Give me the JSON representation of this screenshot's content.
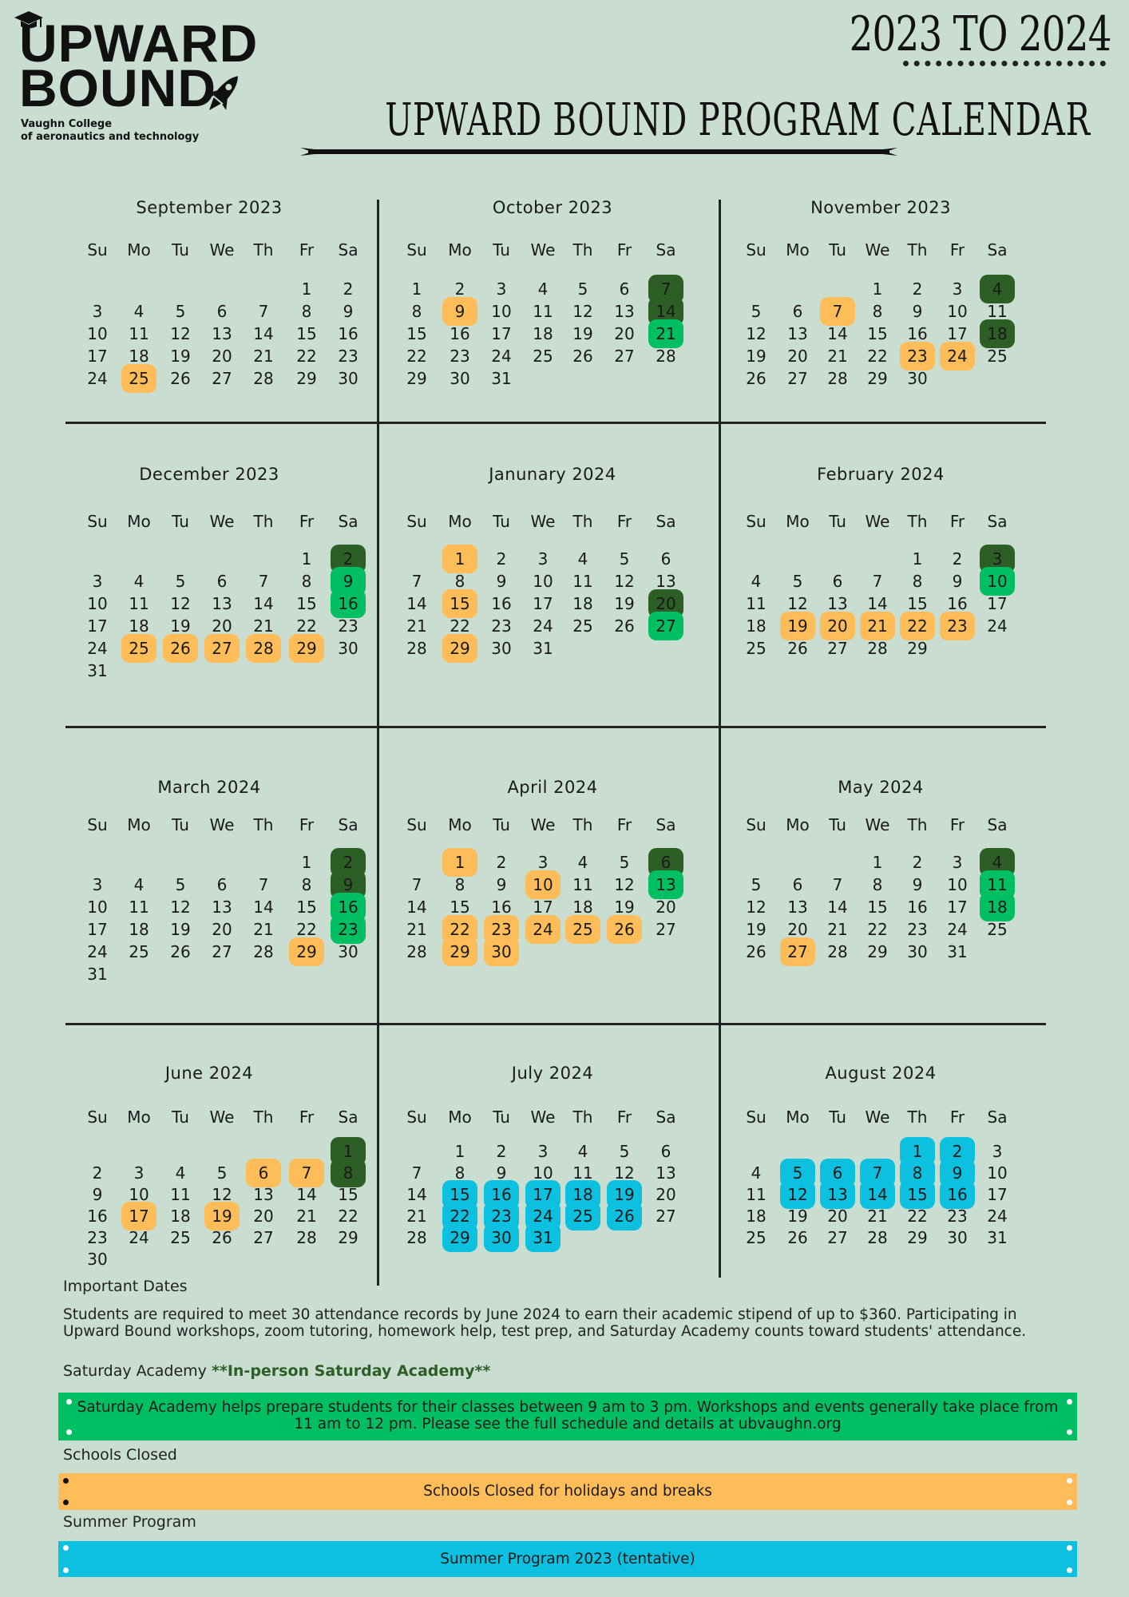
{
  "header": {
    "logo_line1": "UPWARD",
    "logo_line2": "BOUND",
    "logo_sub1": "Vaughn College",
    "logo_sub2": "of aeronautics and technology",
    "years": "2023 TO 2024",
    "title": "UPWARD BOUND PROGRAM CALENDAR"
  },
  "colors": {
    "background": "#c9ddd1",
    "schools_closed": "#ffbd59",
    "saturday_academy_dark": "#2d5e26",
    "saturday_academy_inperson": "#00bf63",
    "summer_program": "#0cc0df"
  },
  "weekdays": [
    "Su",
    "Mo",
    "Tu",
    "We",
    "Th",
    "Fr",
    "Sa"
  ],
  "months": [
    {
      "title": "September 2023",
      "start": 5,
      "days": 30,
      "hl": {
        "25": "o"
      }
    },
    {
      "title": "October 2023",
      "start": 0,
      "days": 31,
      "hl": {
        "7": "dg",
        "9": "o",
        "14": "dg",
        "21": "g"
      }
    },
    {
      "title": "November 2023",
      "start": 3,
      "days": 30,
      "hl": {
        "4": "dg",
        "7": "o",
        "18": "dg",
        "23": "o",
        "24": "o"
      }
    },
    {
      "title": "December 2023",
      "start": 5,
      "days": 31,
      "hl": {
        "2": "dg",
        "9": "g",
        "16": "g",
        "25": "o",
        "26": "o",
        "27": "o",
        "28": "o",
        "29": "o"
      }
    },
    {
      "title": "Janunary  2024",
      "start": 1,
      "days": 31,
      "hl": {
        "1": "o",
        "15": "o",
        "20": "dg",
        "27": "g",
        "29": "o"
      }
    },
    {
      "title": "February 2024",
      "start": 4,
      "days": 29,
      "hl": {
        "3": "dg",
        "10": "g",
        "19": "o",
        "20": "o",
        "21": "o",
        "22": "o",
        "23": "o"
      }
    },
    {
      "title": "March 2024",
      "start": 5,
      "days": 31,
      "hl": {
        "2": "dg",
        "9": "dg",
        "16": "g",
        "23": "g",
        "29": "o"
      }
    },
    {
      "title": "April 2024",
      "start": 1,
      "days": 30,
      "hl": {
        "1": "o",
        "6": "dg",
        "10": "o",
        "13": "g",
        "22": "o",
        "23": "o",
        "24": "o",
        "25": "o",
        "26": "o",
        "29": "o",
        "30": "o"
      }
    },
    {
      "title": "May 2024",
      "start": 3,
      "days": 31,
      "hl": {
        "4": "dg",
        "11": "g",
        "18": "g",
        "27": "o"
      }
    },
    {
      "title": "June 2024",
      "start": 6,
      "days": 30,
      "hl": {
        "1": "dg",
        "6": "o",
        "7": "o",
        "8": "dg",
        "17": "o",
        "19": "o"
      }
    },
    {
      "title": "July 2024",
      "start": 1,
      "days": 31,
      "hl": {
        "15": "b",
        "16": "b",
        "17": "b",
        "18": "b",
        "19": "b",
        "22": "b",
        "23": "b",
        "24": "b",
        "25": "b",
        "26": "b",
        "29": "b",
        "30": "b",
        "31": "b"
      }
    },
    {
      "title": "August 2024",
      "start": 4,
      "days": 31,
      "hl": {
        "1": "b",
        "2": "b",
        "5": "b",
        "6": "b",
        "7": "b",
        "8": "b",
        "9": "b",
        "12": "b",
        "13": "b",
        "14": "b",
        "15": "b",
        "16": "b"
      }
    }
  ],
  "important": {
    "label": "Important Dates",
    "text": "Students are required to meet 30 attendance records by June 2024 to earn their academic stipend of up to $360. Participating in Upward Bound workshops, zoom tutoring, homework help, test prep, and Saturday Academy counts toward students' attendance."
  },
  "saturday": {
    "label": "Saturday Academy",
    "inperson": "**In-person Saturday Academy**",
    "text": "Saturday Academy helps prepare students for their classes between 9 am to 3 pm. Workshops and events generally take place from 11 am to 12 pm. Please see the full schedule and details at ubvaughn.org"
  },
  "closed": {
    "label": "Schools Closed",
    "text": "Schools Closed for holidays and breaks"
  },
  "summer": {
    "label": "Summer Program",
    "text": "Summer Program 2023 (tentative)"
  }
}
